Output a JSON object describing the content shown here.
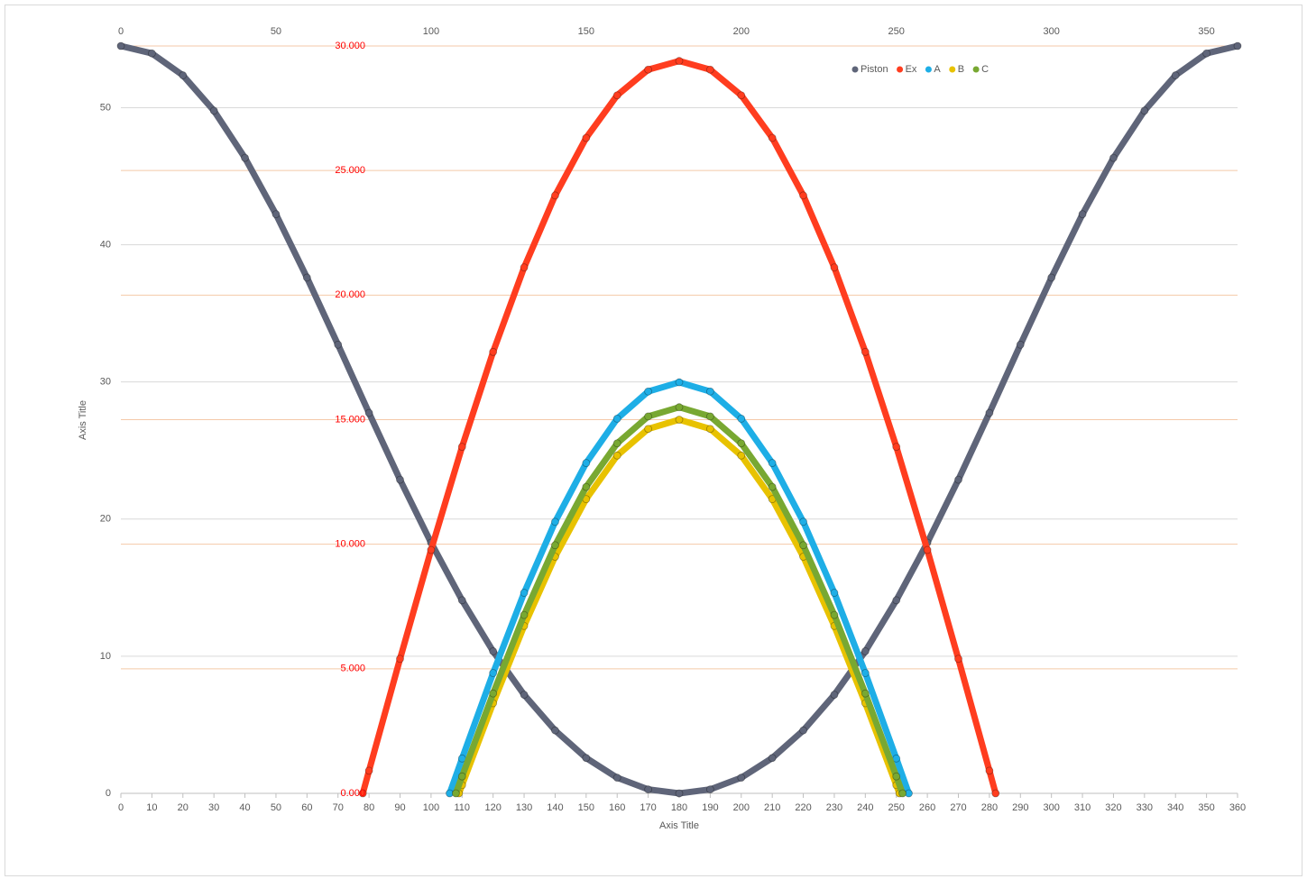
{
  "chart_data": {
    "type": "scatter",
    "x_label": "Axis Title",
    "y_label": "Axis Title",
    "xlim": [
      0,
      360
    ],
    "xticks": [
      0,
      10,
      20,
      30,
      40,
      50,
      60,
      70,
      80,
      90,
      100,
      110,
      120,
      130,
      140,
      150,
      160,
      170,
      180,
      190,
      200,
      210,
      220,
      230,
      240,
      250,
      260,
      270,
      280,
      290,
      300,
      310,
      320,
      330,
      340,
      350,
      360
    ],
    "x2lim": [
      0,
      360
    ],
    "x2ticks": [
      0,
      50,
      100,
      150,
      200,
      250,
      300,
      350
    ],
    "ylim": [
      0,
      54.5
    ],
    "yticks": [
      0,
      10,
      20,
      30,
      40,
      50
    ],
    "y2lim": [
      0,
      30
    ],
    "y2ticks": [
      {
        "value": 0,
        "label": "0.000"
      },
      {
        "value": 5,
        "label": "5.000"
      },
      {
        "value": 10,
        "label": "10.000"
      },
      {
        "value": 15,
        "label": "15.000"
      },
      {
        "value": 20,
        "label": "20.000"
      },
      {
        "value": 25,
        "label": "25.000"
      },
      {
        "value": 30,
        "label": "30.000"
      }
    ],
    "y2_tick_color": "#ff0000",
    "grid": true,
    "legend": "top",
    "series": [
      {
        "name": "Piston",
        "color": "#5f6579",
        "axis": "y",
        "x": [
          0,
          10,
          20,
          30,
          40,
          50,
          60,
          70,
          80,
          90,
          100,
          110,
          120,
          130,
          140,
          150,
          160,
          170,
          180,
          190,
          200,
          210,
          220,
          230,
          240,
          250,
          260,
          270,
          280,
          290,
          300,
          310,
          320,
          330,
          340,
          350,
          360
        ],
        "values": [
          54.5,
          53.96,
          52.36,
          49.78,
          46.34,
          42.23,
          37.61,
          32.72,
          27.74,
          22.87,
          18.28,
          14.08,
          10.36,
          7.19,
          4.59,
          2.58,
          1.14,
          0.29,
          0,
          0.29,
          1.14,
          2.58,
          4.59,
          7.19,
          10.36,
          14.08,
          18.28,
          22.87,
          27.74,
          32.72,
          37.61,
          42.23,
          46.34,
          49.78,
          52.36,
          53.96,
          54.5
        ]
      },
      {
        "name": "Ex",
        "color": "#ff3d1f",
        "axis": "y2",
        "x": [
          78,
          80,
          90,
          100,
          110,
          120,
          130,
          140,
          150,
          160,
          170,
          180,
          190,
          200,
          210,
          220,
          230,
          240,
          250,
          260,
          270,
          280,
          282
        ],
        "values": [
          0,
          0.91,
          5.4,
          9.77,
          13.91,
          17.72,
          21.11,
          24.0,
          26.31,
          28.02,
          29.05,
          29.4,
          29.05,
          28.02,
          26.31,
          24.0,
          21.11,
          17.72,
          13.91,
          9.77,
          5.4,
          0.91,
          0
        ]
      },
      {
        "name": "A",
        "color": "#1eaee6",
        "axis": "y2",
        "x": [
          106,
          110,
          120,
          130,
          140,
          150,
          160,
          170,
          180,
          190,
          200,
          210,
          220,
          230,
          240,
          250,
          254
        ],
        "values": [
          0,
          1.4,
          4.83,
          8.05,
          10.9,
          13.26,
          15.04,
          16.13,
          16.5,
          16.13,
          15.04,
          13.26,
          10.9,
          8.05,
          4.83,
          1.4,
          0
        ]
      },
      {
        "name": "B",
        "color": "#e8c200",
        "axis": "y2",
        "x": [
          109,
          110,
          120,
          130,
          140,
          150,
          160,
          170,
          180,
          190,
          200,
          210,
          220,
          230,
          240,
          250,
          251
        ],
        "values": [
          0,
          0.33,
          3.62,
          6.72,
          9.5,
          11.81,
          13.56,
          14.63,
          15.0,
          14.63,
          13.56,
          11.81,
          9.5,
          6.72,
          3.62,
          0.33,
          0
        ]
      },
      {
        "name": "C",
        "color": "#78a832",
        "axis": "y2",
        "x": [
          108,
          110,
          120,
          130,
          140,
          150,
          160,
          170,
          180,
          190,
          200,
          210,
          220,
          230,
          240,
          250,
          252
        ],
        "values": [
          0,
          0.68,
          4.01,
          7.16,
          9.96,
          12.3,
          14.05,
          15.13,
          15.5,
          15.13,
          14.05,
          12.3,
          9.96,
          7.16,
          4.01,
          0.68,
          0
        ]
      }
    ]
  }
}
